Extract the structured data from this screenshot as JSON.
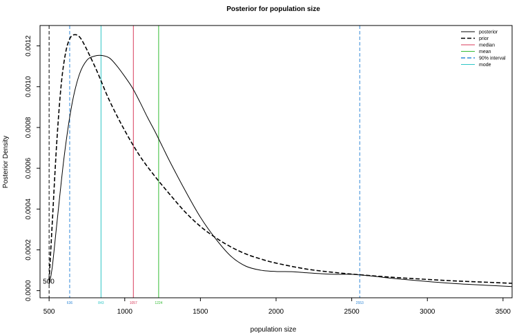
{
  "chart_data": {
    "type": "line",
    "title": "Posterior for population size",
    "xlabel": "population size",
    "ylabel": "Posterior Density",
    "xlim": [
      440,
      3560
    ],
    "ylim": [
      -3.5e-05,
      0.0013
    ],
    "x_ticks": [
      500,
      1000,
      1500,
      2000,
      2500,
      3000,
      3500
    ],
    "y_ticks": [
      0.0,
      0.0002,
      0.0004,
      0.0006,
      0.0008,
      0.001,
      0.0012
    ],
    "y_tick_labels": [
      "0.0000",
      "0.0002",
      "0.0004",
      "0.0006",
      "0.0008",
      "0.0010",
      "0.0012"
    ],
    "grid": false,
    "legend_position": "top-right",
    "series": [
      {
        "name": "posterior",
        "style": "solid",
        "color": "#000000",
        "x": [
          500,
          520,
          550,
          600,
          650,
          700,
          750,
          800,
          850,
          900,
          950,
          1000,
          1050,
          1100,
          1150,
          1200,
          1250,
          1300,
          1400,
          1500,
          1600,
          1700,
          1800,
          1900,
          2000,
          2100,
          2200,
          2300,
          2400,
          2500,
          2600,
          2700,
          2800,
          3000,
          3200,
          3400,
          3560
        ],
        "y": [
          3e-05,
          0.00011,
          0.00032,
          0.00066,
          0.00091,
          0.00106,
          0.00113,
          0.00115,
          0.001153,
          0.00114,
          0.0011,
          0.00105,
          0.000995,
          0.000925,
          0.00085,
          0.00078,
          0.000705,
          0.00063,
          0.00049,
          0.00036,
          0.000255,
          0.00017,
          0.00012,
          0.0001,
          9.4e-05,
          9.3e-05,
          8.8e-05,
          8.3e-05,
          8e-05,
          8e-05,
          7.4e-05,
          6.6e-05,
          5.8e-05,
          4.5e-05,
          3.4e-05,
          2.6e-05,
          2e-05
        ]
      },
      {
        "name": "prior",
        "style": "dashed",
        "color": "#000000",
        "x": [
          500,
          520,
          550,
          580,
          610,
          640,
          670,
          700,
          730,
          770,
          820,
          900,
          1000,
          1100,
          1200,
          1300,
          1400,
          1500,
          1600,
          1700,
          1800,
          1900,
          2000,
          2200,
          2400,
          2600,
          2800,
          3000,
          3200,
          3400,
          3560
        ],
        "y": [
          5e-05,
          0.00032,
          0.00072,
          0.00101,
          0.00117,
          0.00124,
          0.001255,
          0.001245,
          0.00121,
          0.00115,
          0.00107,
          0.00093,
          0.000785,
          0.00066,
          0.00056,
          0.00047,
          0.000385,
          0.000315,
          0.00026,
          0.000215,
          0.00018,
          0.000155,
          0.000135,
          0.000106,
          8.8e-05,
          7.5e-05,
          6.4e-05,
          5.5e-05,
          4.7e-05,
          4.1e-05,
          3.6e-05
        ]
      }
    ],
    "vlines": [
      {
        "name": "prior",
        "x": 500,
        "style": "dashed",
        "color": "#000000"
      },
      {
        "name": "90% interval",
        "x": 636,
        "style": "dashed",
        "color": "#2f87d6",
        "label": "636"
      },
      {
        "name": "mode",
        "x": 843,
        "style": "solid",
        "color": "#2cc5c5",
        "label": "843"
      },
      {
        "name": "median",
        "x": 1057,
        "style": "solid",
        "color": "#d83a5a",
        "label": "1057"
      },
      {
        "name": "mean",
        "x": 1224,
        "style": "solid",
        "color": "#33bb33",
        "label": "1224"
      },
      {
        "name": "90% interval",
        "x": 2553,
        "style": "dashed",
        "color": "#2f87d6",
        "label": "2553"
      }
    ],
    "annotations": [
      {
        "text": "500",
        "x": 500,
        "y": 0.0
      }
    ],
    "legend": [
      {
        "label": "posterior",
        "style": "solid",
        "color": "#000000"
      },
      {
        "label": "prior",
        "style": "dashed",
        "color": "#000000"
      },
      {
        "label": "median",
        "style": "solid",
        "color": "#d83a5a"
      },
      {
        "label": "mean",
        "style": "solid",
        "color": "#33bb33"
      },
      {
        "label": "90% interval",
        "style": "dashed",
        "color": "#2f87d6"
      },
      {
        "label": "mode",
        "style": "solid",
        "color": "#2cc5c5"
      }
    ]
  }
}
